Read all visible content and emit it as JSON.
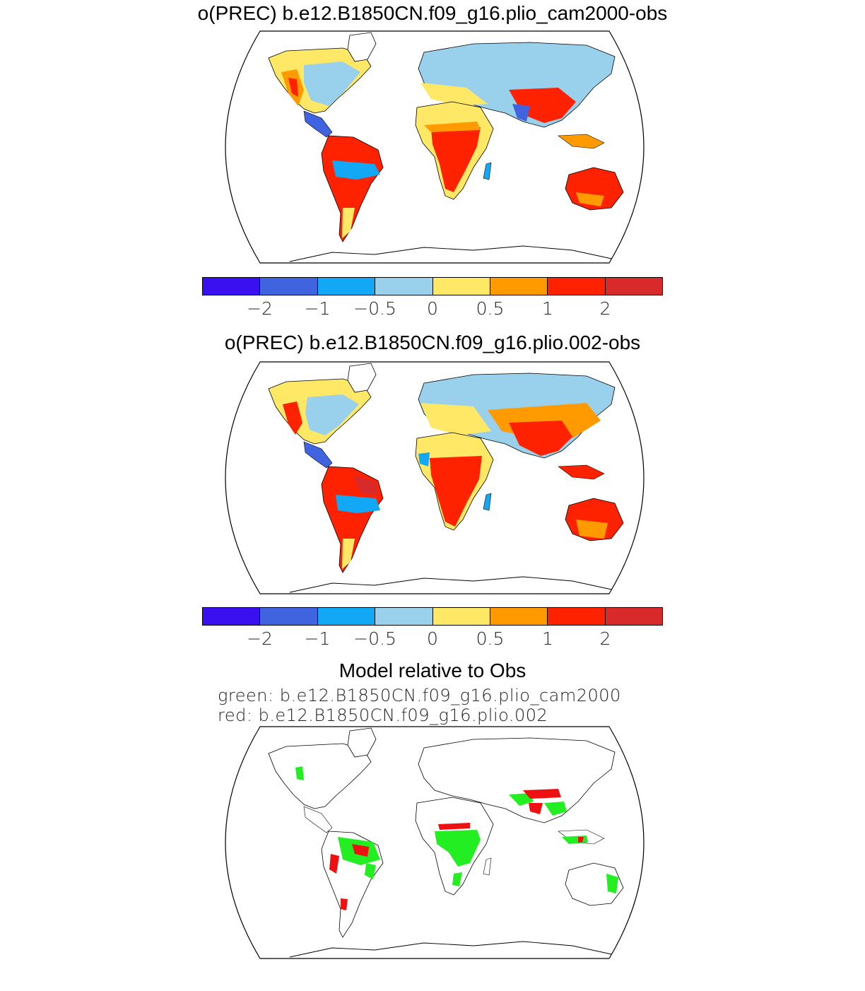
{
  "panels": [
    {
      "title": "o(PREC) b.e12.B1850CN.f09_g16.plio_cam2000-obs"
    },
    {
      "title": "o(PREC) b.e12.B1850CN.f09_g16.plio.002-obs"
    }
  ],
  "colorbar": {
    "colors": [
      "#3a0ff0",
      "#4063e0",
      "#13a8f5",
      "#99d1ec",
      "#ffe866",
      "#ff9a00",
      "#ff2200",
      "#d82a2a"
    ],
    "tick_labels": [
      "−2",
      "−1",
      "−0.5",
      "0",
      "0.5",
      "1",
      "2"
    ]
  },
  "comparison": {
    "title": "Model relative to Obs",
    "legend_green": "green: b.e12.B1850CN.f09_g16.plio_cam2000",
    "legend_red": "red: b.e12.B1850CN.f09_g16.plio.002",
    "green_color": "#22ee22",
    "red_color": "#ee1111"
  }
}
